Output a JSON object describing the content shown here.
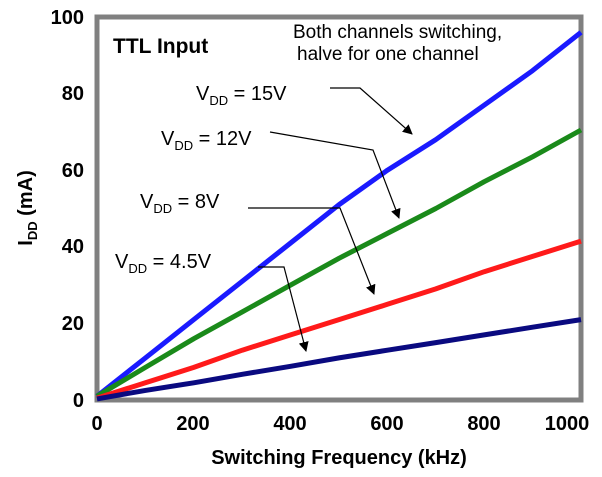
{
  "chart_data": {
    "type": "line",
    "title": "",
    "inset_title": "TTL Input",
    "note": [
      "Both channels switching,",
      "halve for one channel"
    ],
    "xlabel": "Switching Frequency (kHz)",
    "ylabel": {
      "main": "I",
      "sub": "DD",
      "rest": " (mA)"
    },
    "xlim": [
      0,
      1000
    ],
    "ylim": [
      0,
      100
    ],
    "xticks": [
      "0",
      "200",
      "400",
      "600",
      "800",
      "1000"
    ],
    "yticks": [
      "0",
      "20",
      "40",
      "60",
      "80",
      "100"
    ],
    "grid": false,
    "series": [
      {
        "name": "VDD = 15V",
        "label": {
          "main": "V",
          "sub": "DD",
          "rest": " = 15V"
        },
        "color": "#1a1aff",
        "x": [
          0,
          100,
          200,
          300,
          400,
          500,
          600,
          700,
          800,
          900,
          1000
        ],
        "y": [
          1,
          11,
          21,
          31,
          41,
          51,
          60,
          68,
          77,
          86,
          96
        ]
      },
      {
        "name": "VDD = 12V",
        "label": {
          "main": "V",
          "sub": "DD",
          "rest": " = 12V"
        },
        "color": "#1a8a1a",
        "x": [
          0,
          100,
          200,
          300,
          400,
          500,
          600,
          700,
          800,
          900,
          1000
        ],
        "y": [
          1,
          8.5,
          16,
          23,
          30,
          37,
          43.5,
          50,
          57,
          63.5,
          70.5
        ]
      },
      {
        "name": "VDD = 8V",
        "label": {
          "main": "V",
          "sub": "DD",
          "rest": " = 8V"
        },
        "color": "#ff1a1a",
        "x": [
          0,
          100,
          200,
          300,
          400,
          500,
          600,
          700,
          800,
          900,
          1000
        ],
        "y": [
          0.5,
          4.5,
          8.5,
          13,
          17,
          21,
          25,
          29,
          33.5,
          37.5,
          41.5
        ]
      },
      {
        "name": "VDD = 4.5V",
        "label": {
          "main": "V",
          "sub": "DD",
          "rest": " = 4.5V"
        },
        "color": "#0a0a80",
        "x": [
          0,
          100,
          200,
          300,
          400,
          500,
          600,
          700,
          800,
          900,
          1000
        ],
        "y": [
          0.3,
          2.5,
          4.5,
          6.7,
          8.8,
          11,
          13,
          15,
          17,
          19,
          21
        ]
      }
    ]
  }
}
